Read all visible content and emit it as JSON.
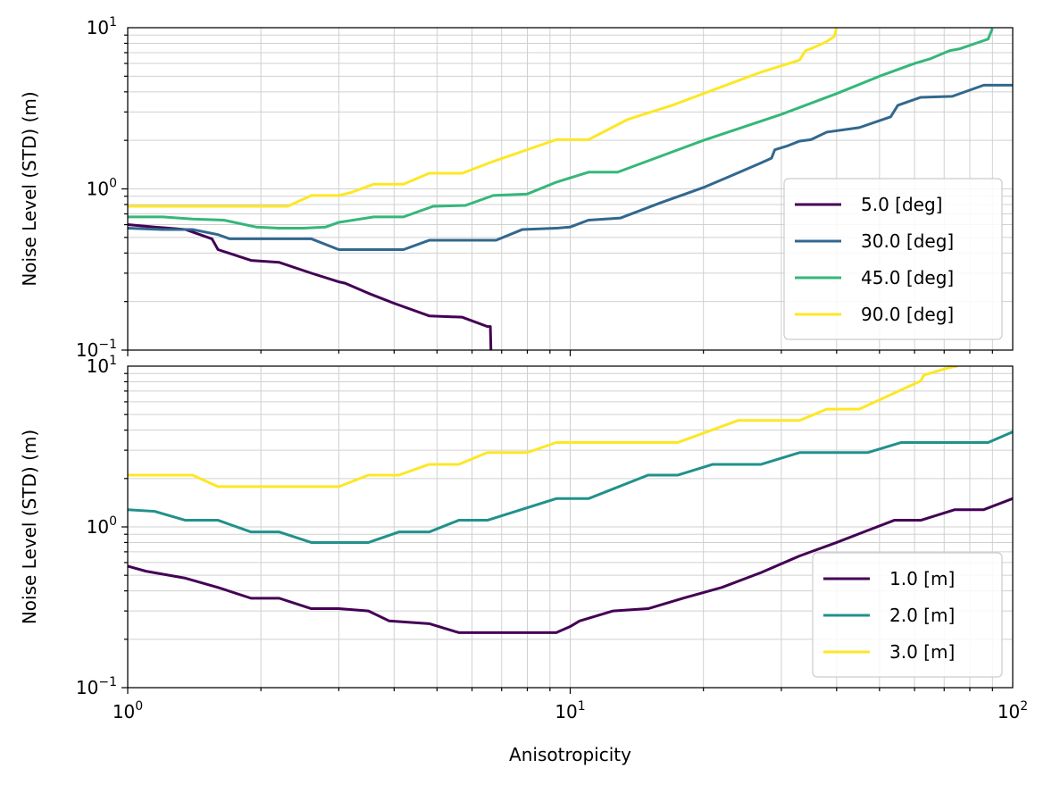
{
  "figure": {
    "xlabel": "Anisotropicity",
    "sharex": true
  },
  "chart_data": [
    {
      "type": "line",
      "panel": "top",
      "xscale": "log",
      "yscale": "log",
      "xlim": [
        1,
        100
      ],
      "ylim": [
        0.1,
        10
      ],
      "ylabel": "Noise Level (STD) (m)",
      "xlabel": "",
      "grid": true,
      "xticks": [
        {
          "value": 1,
          "base": "10",
          "exp": "0"
        },
        {
          "value": 10,
          "base": "10",
          "exp": "1"
        },
        {
          "value": 100,
          "base": "10",
          "exp": "2"
        }
      ],
      "yticks": [
        {
          "value": 0.1,
          "base": "10",
          "exp": "−1"
        },
        {
          "value": 1,
          "base": "10",
          "exp": "0"
        },
        {
          "value": 10,
          "base": "10",
          "exp": "1"
        }
      ],
      "legend_position": "lower-right",
      "series": [
        {
          "name": " 5.0 [deg]",
          "color": "#440154",
          "x": [
            1,
            1.15,
            1.35,
            1.55,
            1.6,
            1.9,
            2.2,
            2.6,
            3.0,
            3.1,
            3.5,
            4.0,
            4.8,
            5.7,
            6.5,
            6.6,
            6.62
          ],
          "y": [
            0.6,
            0.58,
            0.56,
            0.49,
            0.42,
            0.36,
            0.35,
            0.3,
            0.265,
            0.26,
            0.225,
            0.195,
            0.163,
            0.16,
            0.14,
            0.14,
            0.1
          ]
        },
        {
          "name": "30.0 [deg]",
          "color": "#31688e",
          "x": [
            1,
            1.2,
            1.4,
            1.6,
            1.7,
            1.9,
            2.2,
            2.6,
            3.0,
            3.5,
            4.2,
            4.8,
            5.6,
            6.8,
            7.8,
            9.3,
            10,
            11,
            13,
            16,
            18,
            20,
            23,
            27,
            28.5,
            29,
            31,
            33,
            35,
            38,
            45,
            53,
            55,
            62,
            73,
            86,
            100
          ],
          "y": [
            0.57,
            0.56,
            0.56,
            0.52,
            0.49,
            0.49,
            0.49,
            0.49,
            0.42,
            0.42,
            0.42,
            0.48,
            0.48,
            0.48,
            0.56,
            0.57,
            0.58,
            0.64,
            0.66,
            0.82,
            0.92,
            1.02,
            1.2,
            1.45,
            1.55,
            1.75,
            1.85,
            1.98,
            2.02,
            2.25,
            2.4,
            2.8,
            3.3,
            3.7,
            3.75,
            4.4,
            4.4
          ]
        },
        {
          "name": "45.0 [deg]",
          "color": "#35b779",
          "x": [
            1,
            1.2,
            1.4,
            1.65,
            1.95,
            2.2,
            2.5,
            2.8,
            3.0,
            3.6,
            4.2,
            4.9,
            5.8,
            6.7,
            8.0,
            9.3,
            11,
            12.8,
            20,
            30,
            40,
            50,
            60,
            65,
            72,
            76,
            88,
            90
          ],
          "y": [
            0.67,
            0.67,
            0.65,
            0.64,
            0.58,
            0.57,
            0.57,
            0.58,
            0.62,
            0.67,
            0.67,
            0.78,
            0.79,
            0.91,
            0.93,
            1.1,
            1.27,
            1.27,
            2.0,
            2.9,
            3.9,
            5.0,
            6.0,
            6.4,
            7.2,
            7.4,
            8.5,
            9.9
          ]
        },
        {
          "name": "90.0 [deg]",
          "color": "#fde725",
          "x": [
            1,
            1.3,
            1.6,
            1.9,
            2.3,
            2.6,
            3.0,
            3.2,
            3.6,
            4.2,
            4.8,
            5.7,
            6.7,
            8.0,
            9.3,
            11,
            13.5,
            17,
            22,
            27,
            33,
            34,
            35,
            38,
            39.5,
            40
          ],
          "y": [
            0.78,
            0.78,
            0.78,
            0.78,
            0.78,
            0.91,
            0.91,
            0.95,
            1.07,
            1.07,
            1.25,
            1.25,
            1.48,
            1.75,
            2.02,
            2.02,
            2.7,
            3.3,
            4.3,
            5.3,
            6.3,
            7.2,
            7.4,
            8.2,
            8.8,
            10
          ]
        }
      ]
    },
    {
      "type": "line",
      "panel": "bottom",
      "xscale": "log",
      "yscale": "log",
      "xlim": [
        1,
        100
      ],
      "ylim": [
        0.1,
        10
      ],
      "ylabel": "Noise Level (STD) (m)",
      "xlabel": "Anisotropicity",
      "grid": true,
      "xticks": [
        {
          "value": 1,
          "base": "10",
          "exp": "0"
        },
        {
          "value": 10,
          "base": "10",
          "exp": "1"
        },
        {
          "value": 100,
          "base": "10",
          "exp": "2"
        }
      ],
      "yticks": [
        {
          "value": 0.1,
          "base": "10",
          "exp": "−1"
        },
        {
          "value": 1,
          "base": "10",
          "exp": "0"
        },
        {
          "value": 10,
          "base": "10",
          "exp": "1"
        }
      ],
      "legend_position": "lower-right",
      "series": [
        {
          "name": "1.0 [m]",
          "color": "#440154",
          "x": [
            1,
            1.1,
            1.35,
            1.6,
            1.9,
            2.2,
            2.6,
            3.0,
            3.5,
            3.9,
            4.8,
            5.6,
            6.5,
            8.0,
            9.3,
            10,
            10.5,
            11,
            12.5,
            15,
            18,
            22,
            27,
            33,
            35,
            40,
            47,
            54,
            62,
            74,
            86,
            100
          ],
          "y": [
            0.57,
            0.53,
            0.48,
            0.42,
            0.36,
            0.36,
            0.31,
            0.31,
            0.3,
            0.26,
            0.25,
            0.22,
            0.22,
            0.22,
            0.22,
            0.24,
            0.26,
            0.27,
            0.3,
            0.31,
            0.36,
            0.42,
            0.52,
            0.66,
            0.7,
            0.8,
            0.95,
            1.1,
            1.1,
            1.28,
            1.28,
            1.5
          ]
        },
        {
          "name": "2.0 [m]",
          "color": "#21918c",
          "x": [
            1,
            1.15,
            1.35,
            1.6,
            1.9,
            2.2,
            2.6,
            3.0,
            3.5,
            4.1,
            4.8,
            5.6,
            6.5,
            9.3,
            11,
            15,
            17.5,
            21,
            27,
            33,
            40,
            47,
            56,
            65,
            75,
            88,
            100
          ],
          "y": [
            1.28,
            1.25,
            1.1,
            1.1,
            0.93,
            0.93,
            0.8,
            0.8,
            0.8,
            0.93,
            0.93,
            1.1,
            1.1,
            1.5,
            1.5,
            2.1,
            2.1,
            2.45,
            2.45,
            2.9,
            2.9,
            2.9,
            3.35,
            3.35,
            3.35,
            3.35,
            3.9
          ]
        },
        {
          "name": "3.0 [m]",
          "color": "#fde725",
          "x": [
            1,
            1.15,
            1.4,
            1.6,
            1.9,
            2.2,
            2.6,
            3.0,
            3.5,
            4.1,
            4.8,
            5.6,
            6.5,
            8.0,
            9.3,
            11,
            15,
            17.5,
            24,
            33,
            38,
            45,
            62,
            63,
            72,
            75
          ],
          "y": [
            2.1,
            2.1,
            2.1,
            1.78,
            1.78,
            1.78,
            1.78,
            1.78,
            2.1,
            2.1,
            2.45,
            2.45,
            2.9,
            2.9,
            3.35,
            3.35,
            3.35,
            3.35,
            4.6,
            4.6,
            5.4,
            5.4,
            8.1,
            8.8,
            9.8,
            10
          ]
        }
      ]
    }
  ]
}
